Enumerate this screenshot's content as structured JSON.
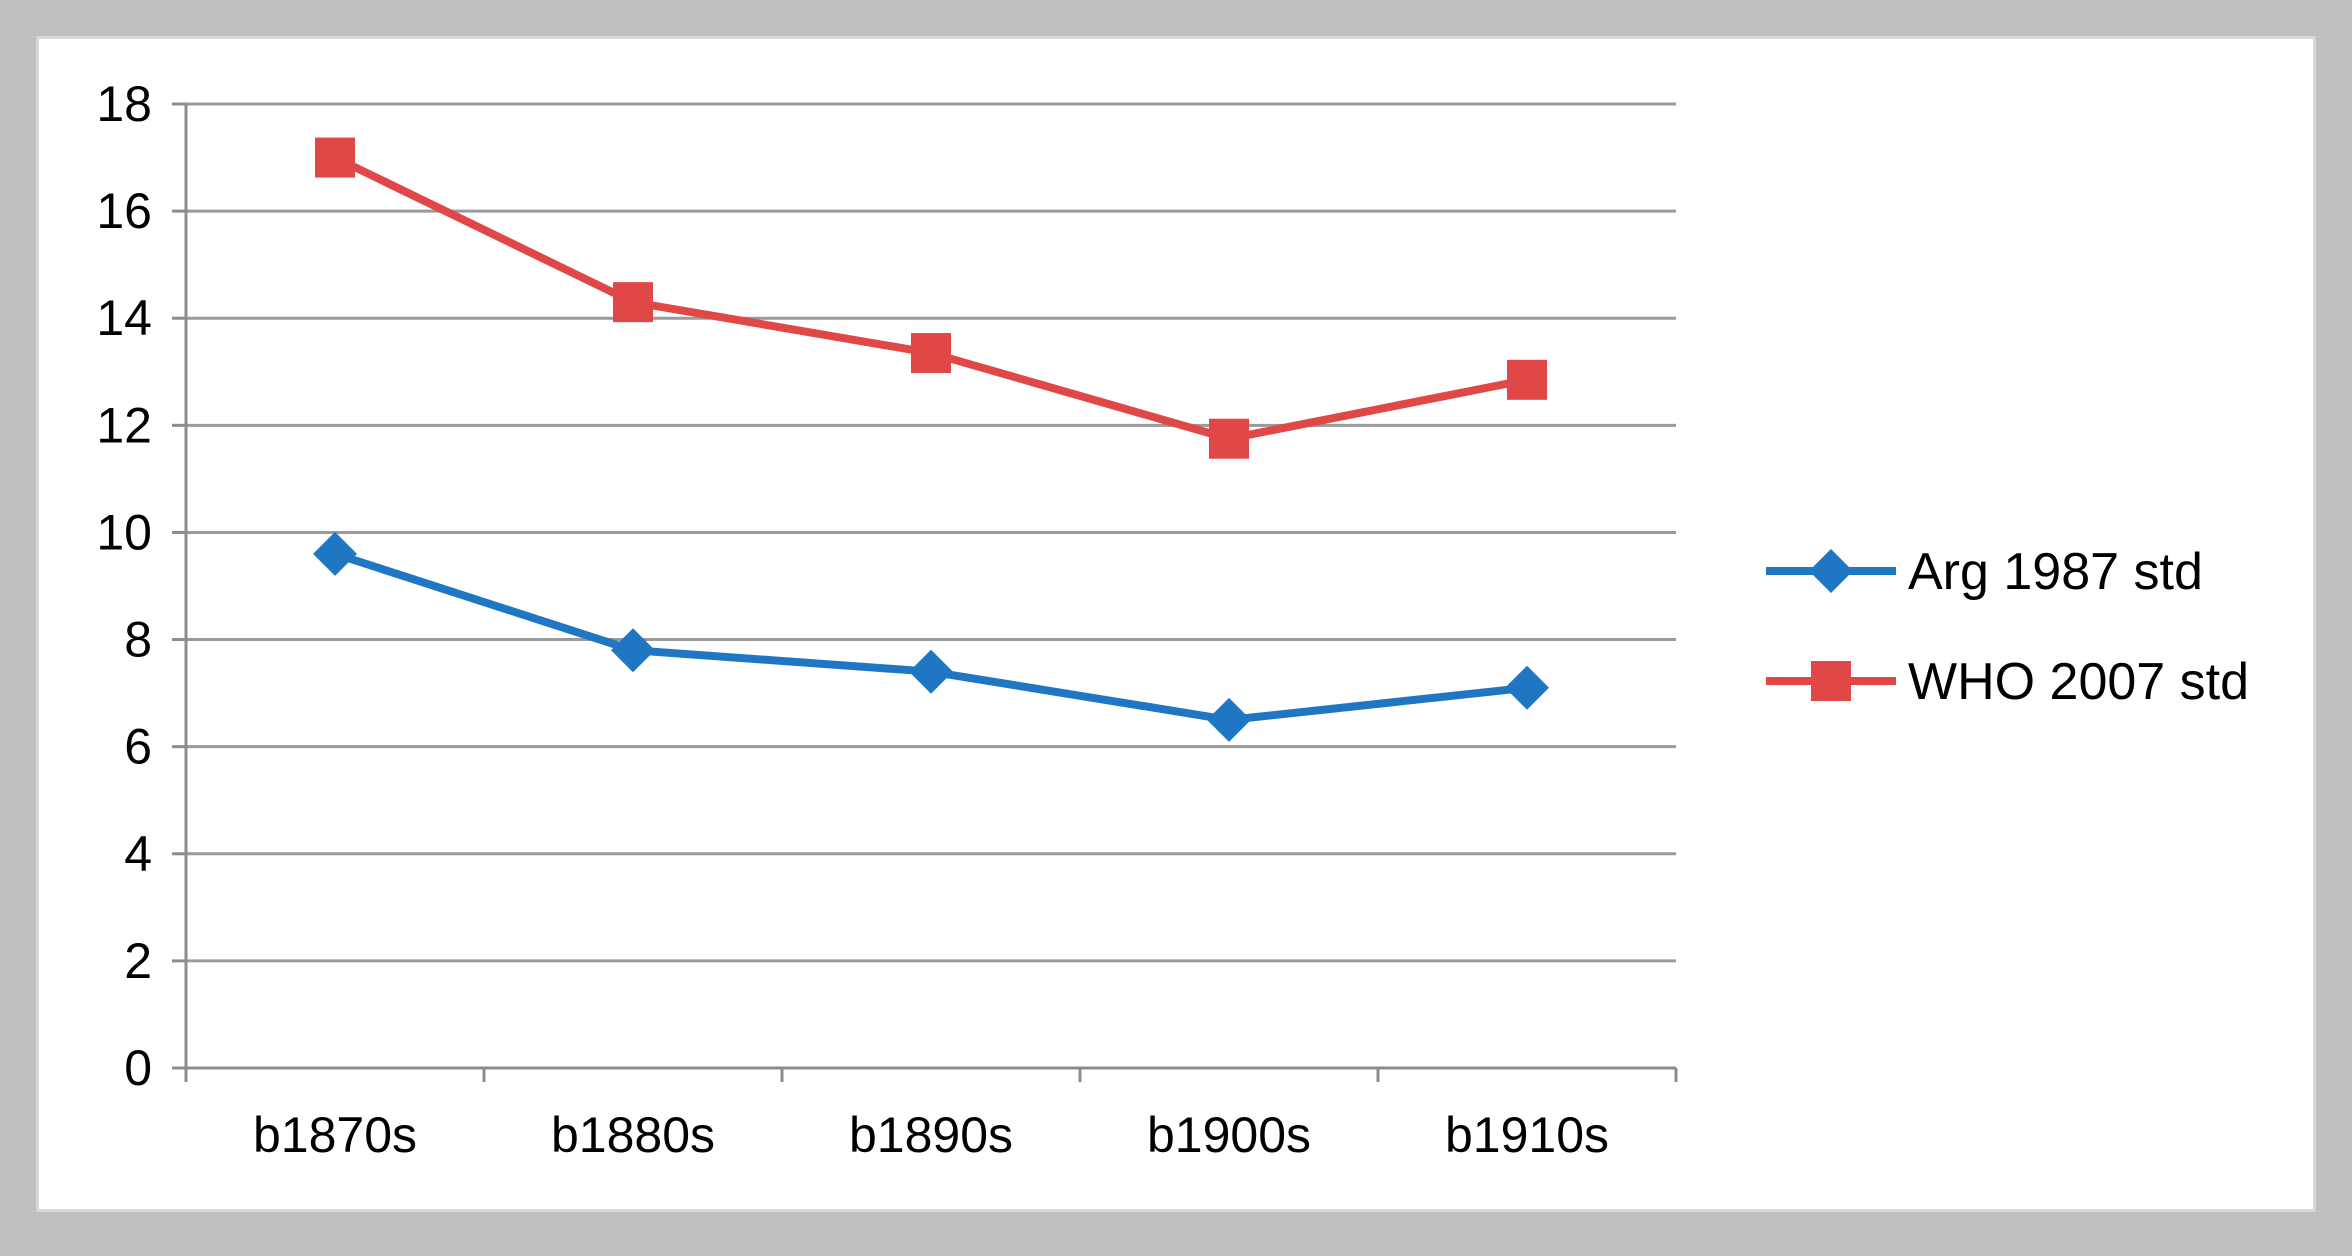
{
  "chart_data": {
    "type": "line",
    "categories": [
      "b1870s",
      "b1880s",
      "b1890s",
      "b1900s",
      "b1910s"
    ],
    "series": [
      {
        "name": "Arg 1987 std",
        "values": [
          9.6,
          7.8,
          7.4,
          6.5,
          7.1
        ],
        "color": "#1f77c4",
        "marker": "diamond"
      },
      {
        "name": "WHO 2007 std",
        "values": [
          17.0,
          14.3,
          13.35,
          11.75,
          12.85
        ],
        "color": "#e04848",
        "marker": "square"
      }
    ],
    "ylim": [
      0,
      18
    ],
    "yticks": [
      0,
      2,
      4,
      6,
      8,
      10,
      12,
      14,
      16,
      18
    ],
    "grid": true,
    "legend": "right",
    "title": "",
    "xlabel": "",
    "ylabel": ""
  }
}
